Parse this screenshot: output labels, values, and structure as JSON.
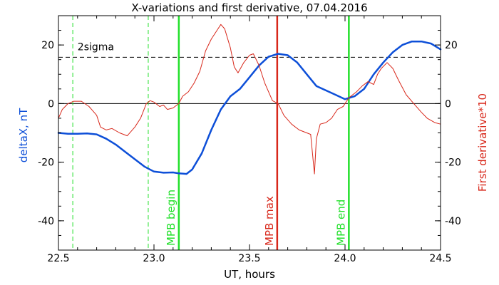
{
  "chart_data": {
    "type": "line",
    "title": "X-variations and first derivative, 07.04.2016",
    "xlabel": "UT, hours",
    "ylabel_left": "deltaX, nT",
    "ylabel_right": "First derivative*10",
    "xlim": [
      22.5,
      24.5
    ],
    "ylim": [
      -50,
      30
    ],
    "x_ticks": [
      {
        "value": 22.5,
        "label": "22.5"
      },
      {
        "value": 23.0,
        "label": "23.0"
      },
      {
        "value": 23.5,
        "label": "23.5"
      },
      {
        "value": 24.0,
        "label": "24.0"
      },
      {
        "value": 24.5,
        "label": "24.5"
      }
    ],
    "y_ticks": [
      {
        "value": 20,
        "label": "20"
      },
      {
        "value": 0,
        "label": "0"
      },
      {
        "value": -20,
        "label": "-20"
      },
      {
        "value": -40,
        "label": "-40"
      }
    ],
    "colors": {
      "deltaX": "#0d4fd8",
      "derivative": "#d8281b",
      "mpb_green": "#22e02a",
      "mpb_max": "#d8281b",
      "sigma": "#000000"
    },
    "sigma_level": 15.8,
    "sigma_label": "2sigma",
    "series": [
      {
        "name": "deltaX",
        "axis": "left",
        "points": [
          [
            22.5,
            -10
          ],
          [
            22.55,
            -10.3
          ],
          [
            22.6,
            -10.3
          ],
          [
            22.65,
            -10.2
          ],
          [
            22.7,
            -10.5
          ],
          [
            22.75,
            -12
          ],
          [
            22.8,
            -14
          ],
          [
            22.85,
            -16.5
          ],
          [
            22.9,
            -19
          ],
          [
            22.95,
            -21.5
          ],
          [
            23.0,
            -23.2
          ],
          [
            23.05,
            -23.6
          ],
          [
            23.1,
            -23.5
          ],
          [
            23.13,
            -23.8
          ],
          [
            23.17,
            -24
          ],
          [
            23.2,
            -22.5
          ],
          [
            23.25,
            -17
          ],
          [
            23.3,
            -9
          ],
          [
            23.35,
            -2
          ],
          [
            23.4,
            2.5
          ],
          [
            23.45,
            5
          ],
          [
            23.5,
            9
          ],
          [
            23.55,
            13
          ],
          [
            23.6,
            16
          ],
          [
            23.65,
            17
          ],
          [
            23.7,
            16.5
          ],
          [
            23.75,
            14
          ],
          [
            23.8,
            10
          ],
          [
            23.85,
            6
          ],
          [
            23.9,
            4.5
          ],
          [
            23.95,
            3
          ],
          [
            24.0,
            1.5
          ],
          [
            24.05,
            2.5
          ],
          [
            24.1,
            5
          ],
          [
            24.15,
            10
          ],
          [
            24.2,
            14
          ],
          [
            24.25,
            17.5
          ],
          [
            24.3,
            20
          ],
          [
            24.35,
            21.2
          ],
          [
            24.4,
            21.2
          ],
          [
            24.45,
            20.5
          ],
          [
            24.5,
            18.5
          ]
        ]
      },
      {
        "name": "derivative",
        "axis": "right",
        "points": [
          [
            22.5,
            -5
          ],
          [
            22.52,
            -2
          ],
          [
            22.55,
            0
          ],
          [
            22.58,
            0.8
          ],
          [
            22.62,
            0.8
          ],
          [
            22.66,
            -1
          ],
          [
            22.7,
            -4
          ],
          [
            22.72,
            -8
          ],
          [
            22.75,
            -9
          ],
          [
            22.78,
            -8.5
          ],
          [
            22.82,
            -10
          ],
          [
            22.86,
            -11
          ],
          [
            22.9,
            -8
          ],
          [
            22.93,
            -5
          ],
          [
            22.96,
            0
          ],
          [
            22.98,
            1
          ],
          [
            23.0,
            0.5
          ],
          [
            23.03,
            -1
          ],
          [
            23.05,
            -0.5
          ],
          [
            23.07,
            -2
          ],
          [
            23.1,
            -1.5
          ],
          [
            23.13,
            0
          ],
          [
            23.15,
            2.5
          ],
          [
            23.18,
            4
          ],
          [
            23.21,
            7
          ],
          [
            23.24,
            11
          ],
          [
            23.27,
            18
          ],
          [
            23.3,
            22
          ],
          [
            23.33,
            25
          ],
          [
            23.35,
            27
          ],
          [
            23.37,
            25.5
          ],
          [
            23.4,
            19
          ],
          [
            23.42,
            12.5
          ],
          [
            23.44,
            10.5
          ],
          [
            23.47,
            14
          ],
          [
            23.5,
            16.5
          ],
          [
            23.52,
            17
          ],
          [
            23.55,
            13
          ],
          [
            23.58,
            7
          ],
          [
            23.62,
            1
          ],
          [
            23.65,
            0
          ],
          [
            23.68,
            -4
          ],
          [
            23.72,
            -7
          ],
          [
            23.76,
            -9
          ],
          [
            23.8,
            -10
          ],
          [
            23.82,
            -10.5
          ],
          [
            23.84,
            -24
          ],
          [
            23.85,
            -12
          ],
          [
            23.87,
            -7
          ],
          [
            23.9,
            -6.5
          ],
          [
            23.93,
            -5
          ],
          [
            23.96,
            -2
          ],
          [
            23.99,
            -1
          ],
          [
            24.02,
            2
          ],
          [
            24.06,
            4
          ],
          [
            24.09,
            6
          ],
          [
            24.12,
            7.5
          ],
          [
            24.15,
            6.5
          ],
          [
            24.17,
            10
          ],
          [
            24.19,
            12
          ],
          [
            24.22,
            14
          ],
          [
            24.25,
            12
          ],
          [
            24.28,
            8
          ],
          [
            24.32,
            3
          ],
          [
            24.36,
            0
          ],
          [
            24.4,
            -3
          ],
          [
            24.43,
            -5
          ],
          [
            24.47,
            -6.5
          ],
          [
            24.5,
            -7
          ]
        ]
      }
    ],
    "vertical_lines": [
      {
        "x": 22.575,
        "color": "#22e02a",
        "dashed": true,
        "label": ""
      },
      {
        "x": 22.97,
        "color": "#22e02a",
        "dashed": true,
        "label": ""
      },
      {
        "x": 23.13,
        "color": "#22e02a",
        "dashed": false,
        "label": "MPB begin"
      },
      {
        "x": 23.645,
        "color": "#d8281b",
        "dashed": false,
        "label": "MPB max"
      },
      {
        "x": 24.02,
        "color": "#22e02a",
        "dashed": false,
        "label": "MPB end"
      }
    ]
  }
}
